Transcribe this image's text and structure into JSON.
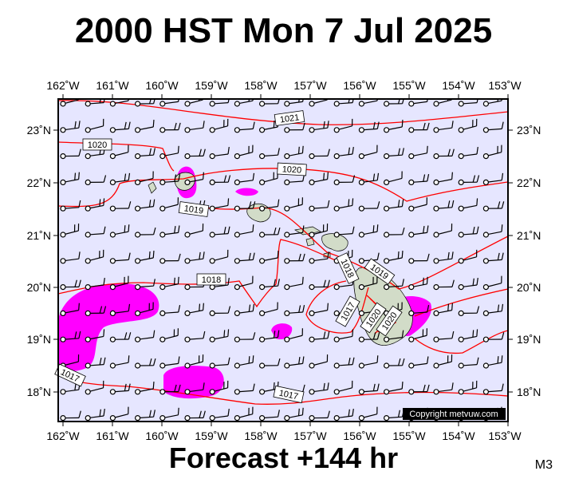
{
  "title": "2000 HST Mon 7 Jul 2025",
  "footer": "Forecast +144 hr",
  "model_label": "M3",
  "copyright": "Copyright metvuw.com",
  "colors": {
    "sea": "#e6e6ff",
    "precip": "#ff00ff",
    "isobar": "#ff0000",
    "land": "#d2dcc8"
  },
  "lon_labels": [
    "162˚W",
    "161˚W",
    "160˚W",
    "159˚W",
    "158˚W",
    "157˚W",
    "156˚W",
    "155˚W",
    "154˚W",
    "153˚W"
  ],
  "lat_labels": [
    "23˚N",
    "22˚N",
    "21˚N",
    "20˚N",
    "19˚N",
    "18˚N"
  ],
  "isobar_labels": [
    "1021",
    "1020",
    "1020",
    "1019",
    "1018",
    "1018",
    "1019",
    "1017",
    "1017",
    "1017",
    "1020",
    "1020"
  ]
}
